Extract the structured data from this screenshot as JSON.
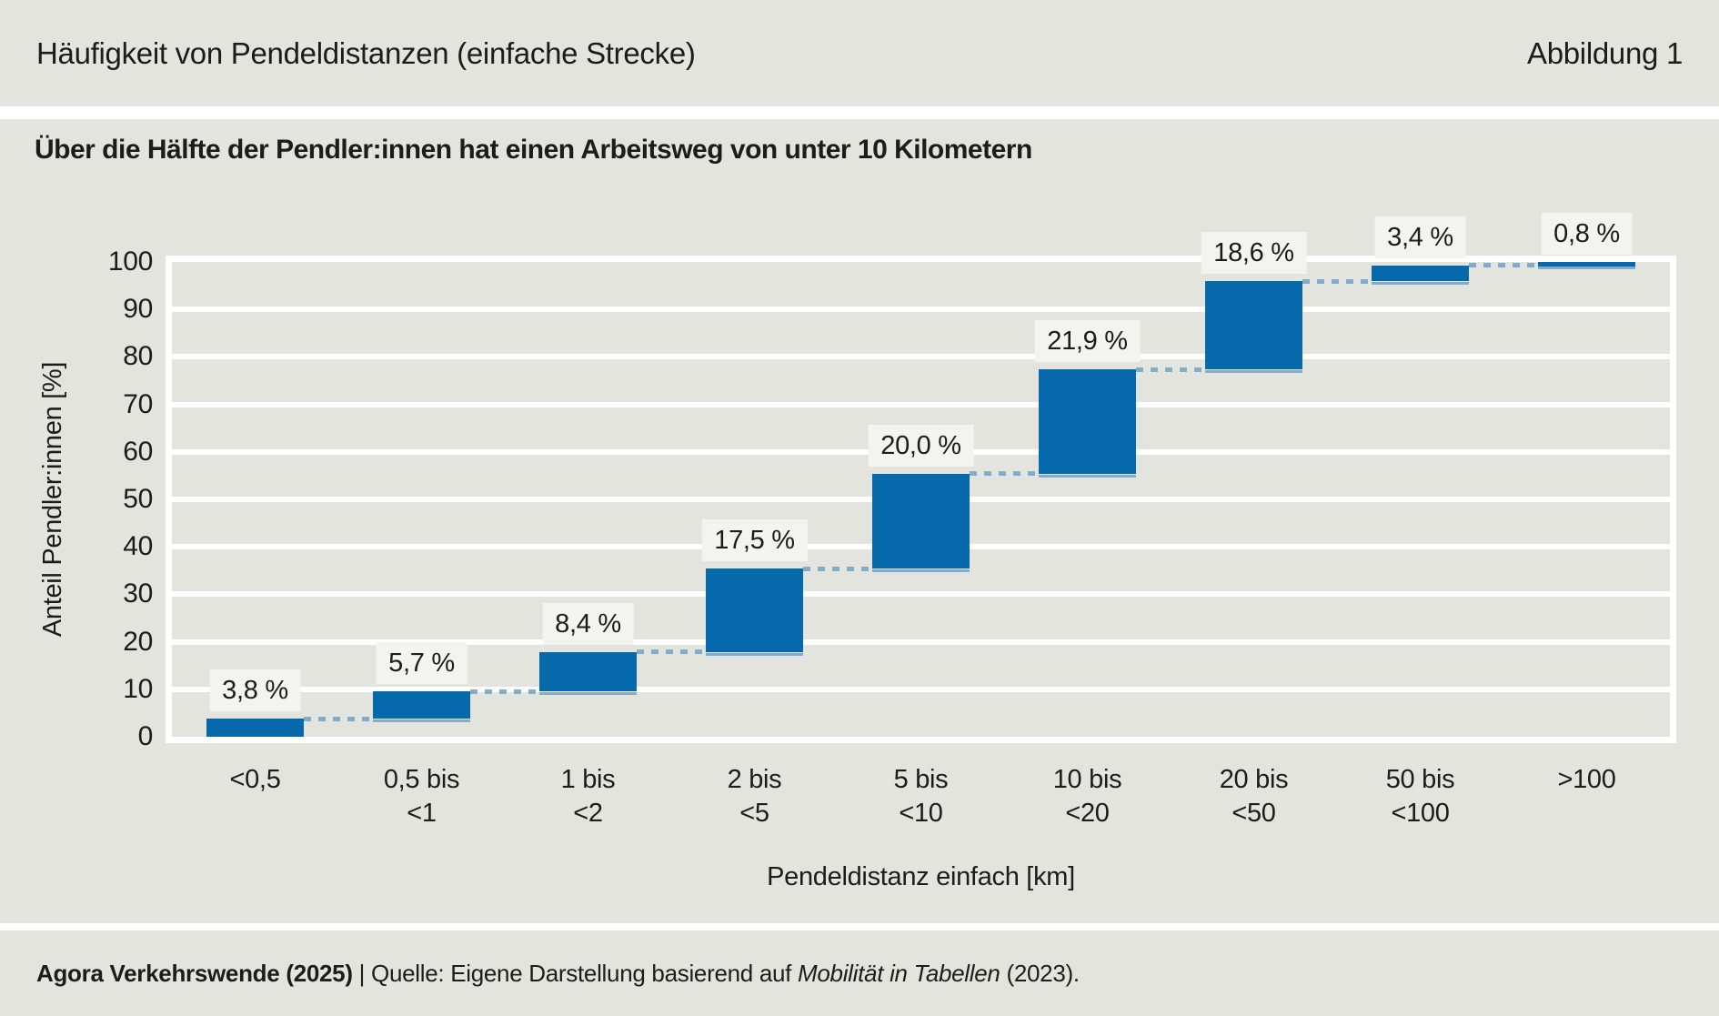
{
  "header": {
    "title": "Häufigkeit von Pendeldistanzen (einfache Strecke)",
    "figure_label": "Abbildung 1"
  },
  "chart": {
    "title": "Über die Hälfte der Pendler:innen hat einen Arbeitsweg von unter 10 Kilometern"
  },
  "chart_data": {
    "type": "bar",
    "subtype": "waterfall-cumulative",
    "title": "Über die Hälfte der Pendler:innen hat einen Arbeitsweg von unter 10 Kilometern",
    "categories": [
      "<0,5",
      "0,5 bis\n<1",
      "1 bis\n<2",
      "2 bis\n<5",
      "5 bis\n<10",
      "10 bis\n<20",
      "20 bis\n<50",
      "50 bis\n<100",
      ">100"
    ],
    "values": [
      3.8,
      5.7,
      8.4,
      17.5,
      20.0,
      21.9,
      18.6,
      3.4,
      0.8
    ],
    "value_labels": [
      "3,8 %",
      "5,7 %",
      "8,4 %",
      "17,5 %",
      "20,0 %",
      "21,9 %",
      "18,6 %",
      "3,4 %",
      "0,8 %"
    ],
    "cumulative": [
      3.8,
      9.5,
      17.9,
      35.4,
      55.4,
      77.3,
      95.9,
      99.3,
      100
    ],
    "xlabel": "Pendeldistanz einfach [km]",
    "ylabel": "Anteil Pendler:innen [%]",
    "ylim": [
      0,
      100
    ],
    "yticks": [
      0,
      10,
      20,
      30,
      40,
      50,
      60,
      70,
      80,
      90,
      100
    ],
    "grid": true,
    "legend": "none",
    "colors": {
      "bar": "#0669ac",
      "connector": "#85abcb",
      "gridline": "#ffffff",
      "label_background": "#f3f3ef",
      "page_background": "#e4e4df",
      "text": "#1c1c1a"
    }
  },
  "footer": {
    "source_bold": "Agora Verkehrswende (2025)",
    "separator": " | ",
    "source_text": "Quelle: Eigene Darstellung basierend auf ",
    "source_italic": "Mobilität in Tabellen",
    "source_end": " (2023)."
  }
}
